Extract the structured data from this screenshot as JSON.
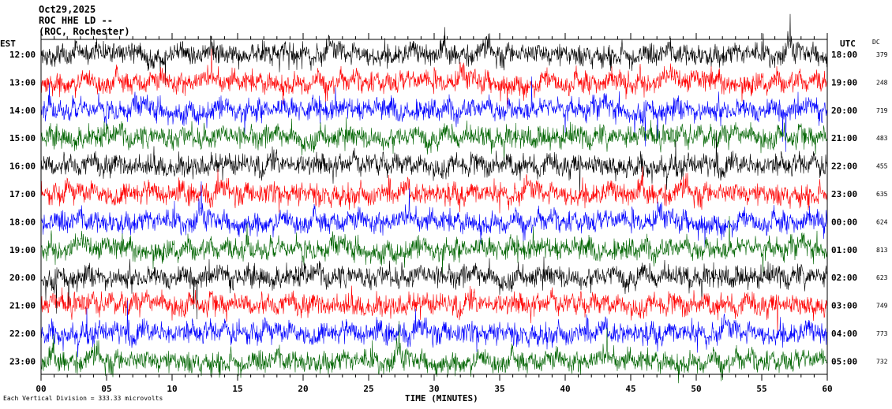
{
  "header": {
    "date": "Oct29,2025",
    "station": "ROC HHE LD --",
    "location": "(ROC, Rochester)"
  },
  "left_tz": "EST",
  "right_tz": "UTC",
  "dc_header": "DC",
  "xlabel": "TIME (MINUTES)",
  "footnote": "Each Vertical Division = 333.33 microvolts",
  "colors": {
    "trace_cycle": [
      "#000000",
      "#ff0000",
      "#0000ff",
      "#006400"
    ]
  },
  "chart_data": {
    "type": "line",
    "subtype": "helicorder",
    "x_ticks": [
      "00",
      "05",
      "10",
      "15",
      "20",
      "25",
      "30",
      "35",
      "40",
      "45",
      "50",
      "55",
      "60"
    ],
    "xlim": [
      0,
      60
    ],
    "rows": [
      {
        "local": "12:00",
        "utc": "18:00",
        "dc": "379",
        "color": "#000000"
      },
      {
        "local": "13:00",
        "utc": "19:00",
        "dc": "248",
        "color": "#ff0000"
      },
      {
        "local": "14:00",
        "utc": "20:00",
        "dc": "719",
        "color": "#0000ff"
      },
      {
        "local": "15:00",
        "utc": "21:00",
        "dc": "483",
        "color": "#006400"
      },
      {
        "local": "16:00",
        "utc": "22:00",
        "dc": "455",
        "color": "#000000"
      },
      {
        "local": "17:00",
        "utc": "23:00",
        "dc": "635",
        "color": "#ff0000"
      },
      {
        "local": "18:00",
        "utc": "00:00",
        "dc": "624",
        "color": "#0000ff"
      },
      {
        "local": "19:00",
        "utc": "01:00",
        "dc": "813",
        "color": "#006400"
      },
      {
        "local": "20:00",
        "utc": "02:00",
        "dc": "623",
        "color": "#000000"
      },
      {
        "local": "21:00",
        "utc": "03:00",
        "dc": "749",
        "color": "#ff0000"
      },
      {
        "local": "22:00",
        "utc": "04:00",
        "dc": "773",
        "color": "#0000ff"
      },
      {
        "local": "23:00",
        "utc": "05:00",
        "dc": "732",
        "color": "#006400"
      }
    ]
  }
}
